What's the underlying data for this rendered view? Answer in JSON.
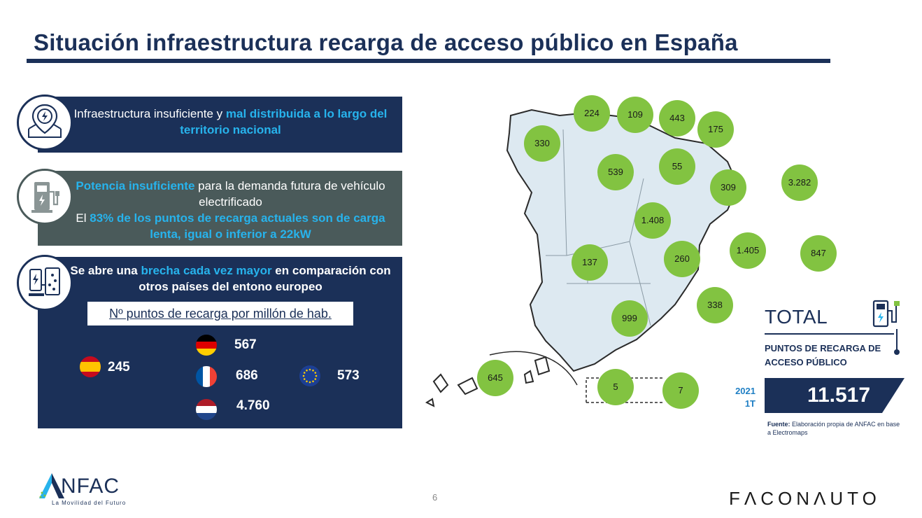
{
  "title": "Situación infraestructura recarga de acceso público en España",
  "panel1": {
    "text_plain": "Infraestructura insuficiente y ",
    "text_hl": "mal distribuida a lo largo del territorio nacional"
  },
  "panel2": {
    "line1_hl": "Potencia insuficiente",
    "line1_plain": " para la demanda futura de vehículo electrificado",
    "line2_plain": "El ",
    "line2_hl": "83% de los puntos de recarga actuales son de carga lenta, igual o inferior a 22kW"
  },
  "panel3": {
    "line_a": "Se abre una ",
    "line_hl": "brecha cada vez mayor",
    "line_b": " en comparación con otros países del entono europeo",
    "subhead": "Nº puntos de recarga por millón de hab.",
    "countries": [
      {
        "flag": "spain-flag",
        "value": "245"
      },
      {
        "flag": "germany-flag",
        "value": "567"
      },
      {
        "flag": "france-flag",
        "value": "686"
      },
      {
        "flag": "netherlands-flag",
        "value": "4.760"
      },
      {
        "flag": "eu-flag",
        "value": "573"
      }
    ]
  },
  "map": {
    "regions": [
      {
        "name": "galicia",
        "value": "330"
      },
      {
        "name": "asturias",
        "value": "224"
      },
      {
        "name": "cantabria",
        "value": "109"
      },
      {
        "name": "pais-vasco",
        "value": "443"
      },
      {
        "name": "navarra",
        "value": "175"
      },
      {
        "name": "castilla-leon",
        "value": "539"
      },
      {
        "name": "la-rioja",
        "value": "55"
      },
      {
        "name": "aragon",
        "value": "309"
      },
      {
        "name": "cataluna",
        "value": "3.282"
      },
      {
        "name": "madrid",
        "value": "1.408"
      },
      {
        "name": "extremadura",
        "value": "137"
      },
      {
        "name": "castilla-la-mancha",
        "value": "260"
      },
      {
        "name": "valencia",
        "value": "1.405"
      },
      {
        "name": "baleares",
        "value": "847"
      },
      {
        "name": "murcia",
        "value": "338"
      },
      {
        "name": "andalucia",
        "value": "999"
      },
      {
        "name": "canarias",
        "value": "645"
      },
      {
        "name": "ceuta",
        "value": "5"
      },
      {
        "name": "melilla",
        "value": "7"
      }
    ]
  },
  "total": {
    "label": "TOTAL",
    "sub": "PUNTOS DE RECARGA DE ACCESO PÚBLICO",
    "year": "2021",
    "quarter": "1T",
    "value": "11.517",
    "source_bold": "Fuente:",
    "source_text": " Elaboración propia de ANFAC en base a Electromaps"
  },
  "footer": {
    "anfac": "NFAC",
    "anfac_tag": "La Movilidad del Futuro",
    "page": "6",
    "faconauto": "FΛCONΛUTO"
  },
  "colors": {
    "navy": "#1b3058",
    "grey_panel": "#4a5a5a",
    "highlight": "#27b3ec",
    "bubble": "#82c341",
    "map_fill": "#dde9f1"
  }
}
